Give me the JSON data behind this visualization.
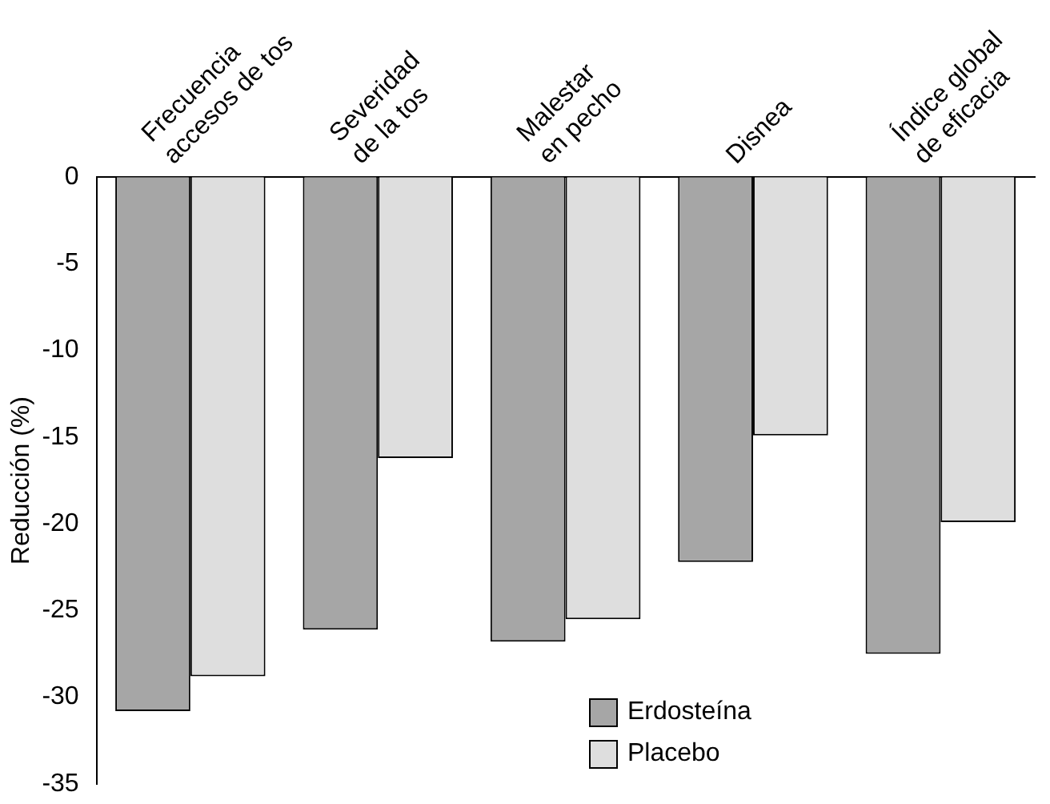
{
  "chart_data": {
    "type": "bar",
    "ylabel": "Reducción (%)",
    "categories": [
      "Frecuencia\naccesos de tos",
      "Severidad\nde la tos",
      "Malestar\nen pecho",
      "Disnea",
      "Índice global\nde eficacia"
    ],
    "series": [
      {
        "name": "Erdosteína",
        "color": "#a6a6a6",
        "values": [
          -30.8,
          -26.1,
          -26.8,
          -22.2,
          -27.5
        ]
      },
      {
        "name": "Placebo",
        "color": "#dedede",
        "values": [
          -28.8,
          -16.2,
          -25.5,
          -14.9,
          -19.9
        ]
      }
    ],
    "ylim": [
      -35,
      0
    ],
    "yticks": [
      -35,
      -30,
      -25,
      -20,
      -15,
      -10,
      -5,
      0
    ],
    "grid": false,
    "legend": "bottom"
  }
}
